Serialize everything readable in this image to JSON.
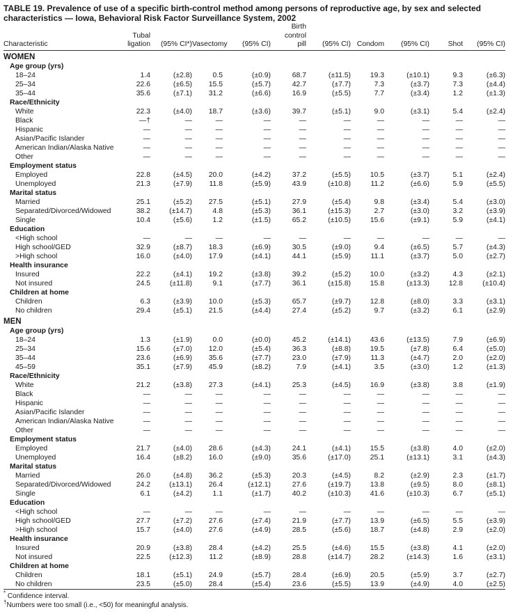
{
  "title": "TABLE 19. Prevalence of use of a specific birth-control method among persons of reproductive age, by sex and selected characteristics — Iowa, Behavioral Risk Factor Surveillance System, 2002",
  "columns": [
    [
      "Characteristic"
    ],
    [
      "Tubal",
      "ligation"
    ],
    [
      "(95% CI*)"
    ],
    [
      "Vasectomy"
    ],
    [
      "(95% CI)"
    ],
    [
      "Birth",
      "control",
      "pill"
    ],
    [
      "(95% CI)"
    ],
    [
      "Condom"
    ],
    [
      "(95% CI)"
    ],
    [
      "Shot"
    ],
    [
      "(95% CI)"
    ]
  ],
  "sections": [
    {
      "name": "WOMEN",
      "groups": [
        {
          "name": "Age group (yrs)",
          "rows": [
            [
              "18–24",
              "1.4",
              "(±2.8)",
              "0.5",
              "(±0.9)",
              "68.7",
              "(±11.5)",
              "19.3",
              "(±10.1)",
              "9.3",
              "(±6.3)"
            ],
            [
              "25–34",
              "22.6",
              "(±6.5)",
              "15.5",
              "(±5.7)",
              "42.7",
              "(±7.7)",
              "7.3",
              "(±3.7)",
              "7.3",
              "(±4.4)"
            ],
            [
              "35–44",
              "35.6",
              "(±7.1)",
              "31.2",
              "(±6.6)",
              "16.9",
              "(±5.5)",
              "7.7",
              "(±3.4)",
              "1.2",
              "(±1.3)"
            ]
          ]
        },
        {
          "name": "Race/Ethnicity",
          "rows": [
            [
              "White",
              "22.3",
              "(±4.0)",
              "18.7",
              "(±3.6)",
              "39.7",
              "(±5.1)",
              "9.0",
              "(±3.1)",
              "5.4",
              "(±2.4)"
            ],
            [
              "Black",
              "—†",
              "—",
              "—",
              "—",
              "—",
              "—",
              "—",
              "—",
              "—",
              "—"
            ],
            [
              "Hispanic",
              "—",
              "—",
              "—",
              "—",
              "—",
              "—",
              "—",
              "—",
              "—",
              "—"
            ],
            [
              "Asian/Pacific Islander",
              "—",
              "—",
              "—",
              "—",
              "—",
              "—",
              "—",
              "—",
              "—",
              "—"
            ],
            [
              "American Indian/Alaska Native",
              "—",
              "—",
              "—",
              "—",
              "—",
              "—",
              "—",
              "—",
              "—",
              "—"
            ],
            [
              "Other",
              "—",
              "—",
              "—",
              "—",
              "—",
              "—",
              "—",
              "—",
              "—",
              "—"
            ]
          ]
        },
        {
          "name": "Employment status",
          "rows": [
            [
              "Employed",
              "22.8",
              "(±4.5)",
              "20.0",
              "(±4.2)",
              "37.2",
              "(±5.5)",
              "10.5",
              "(±3.7)",
              "5.1",
              "(±2.4)"
            ],
            [
              "Unemployed",
              "21.3",
              "(±7.9)",
              "11.8",
              "(±5.9)",
              "43.9",
              "(±10.8)",
              "11.2",
              "(±6.6)",
              "5.9",
              "(±5.5)"
            ]
          ]
        },
        {
          "name": "Marital status",
          "rows": [
            [
              "Married",
              "25.1",
              "(±5.2)",
              "27.5",
              "(±5.1)",
              "27.9",
              "(±5.4)",
              "9.8",
              "(±3.4)",
              "5.4",
              "(±3.0)"
            ],
            [
              "Separated/Divorced/Widowed",
              "38.2",
              "(±14.7)",
              "4.8",
              "(±5.3)",
              "36.1",
              "(±15.3)",
              "2.7",
              "(±3.0)",
              "3.2",
              "(±3.9)"
            ],
            [
              "Single",
              "10.4",
              "(±5.6)",
              "1.2",
              "(±1.5)",
              "65.2",
              "(±10.5)",
              "15.6",
              "(±9.1)",
              "5.9",
              "(±4.1)"
            ]
          ]
        },
        {
          "name": "Education",
          "rows": [
            [
              "<High school",
              "—",
              "—",
              "—",
              "—",
              "—",
              "—",
              "—",
              "—",
              "—",
              "—"
            ],
            [
              "High school/GED",
              "32.9",
              "(±8.7)",
              "18.3",
              "(±6.9)",
              "30.5",
              "(±9.0)",
              "9.4",
              "(±6.5)",
              "5.7",
              "(±4.3)"
            ],
            [
              ">High school",
              "16.0",
              "(±4.0)",
              "17.9",
              "(±4.1)",
              "44.1",
              "(±5.9)",
              "11.1",
              "(±3.7)",
              "5.0",
              "(±2.7)"
            ]
          ]
        },
        {
          "name": "Health insurance",
          "rows": [
            [
              "Insured",
              "22.2",
              "(±4.1)",
              "19.2",
              "(±3.8)",
              "39.2",
              "(±5.2)",
              "10.0",
              "(±3.2)",
              "4.3",
              "(±2.1)"
            ],
            [
              "Not insured",
              "24.5",
              "(±11.8)",
              "9.1",
              "(±7.7)",
              "36.1",
              "(±15.8)",
              "15.8",
              "(±13.3)",
              "12.8",
              "(±10.4)"
            ]
          ]
        },
        {
          "name": "Children at home",
          "rows": [
            [
              "Children",
              "6.3",
              "(±3.9)",
              "10.0",
              "(±5.3)",
              "65.7",
              "(±9.7)",
              "12.8",
              "(±8.0)",
              "3.3",
              "(±3.1)"
            ],
            [
              "No children",
              "29.4",
              "(±5.1)",
              "21.5",
              "(±4.4)",
              "27.4",
              "(±5.2)",
              "9.7",
              "(±3.2)",
              "6.1",
              "(±2.9)"
            ]
          ]
        }
      ]
    },
    {
      "name": "MEN",
      "groups": [
        {
          "name": "Age group (yrs)",
          "rows": [
            [
              "18–24",
              "1.3",
              "(±1.9)",
              "0.0",
              "(±0.0)",
              "45.2",
              "(±14.1)",
              "43.6",
              "(±13.5)",
              "7.9",
              "(±6.9)"
            ],
            [
              "25–34",
              "15.6",
              "(±7.0)",
              "12.0",
              "(±5.4)",
              "36.3",
              "(±8.8)",
              "19.5",
              "(±7.8)",
              "6.4",
              "(±5.0)"
            ],
            [
              "35–44",
              "23.6",
              "(±6.9)",
              "35.6",
              "(±7.7)",
              "23.0",
              "(±7.9)",
              "11.3",
              "(±4.7)",
              "2.0",
              "(±2.0)"
            ],
            [
              "45–59",
              "35.1",
              "(±7.9)",
              "45.9",
              "(±8.2)",
              "7.9",
              "(±4.1)",
              "3.5",
              "(±3.0)",
              "1.2",
              "(±1.3)"
            ]
          ]
        },
        {
          "name": "Race/Ethnicity",
          "rows": [
            [
              "White",
              "21.2",
              "(±3.8)",
              "27.3",
              "(±4.1)",
              "25.3",
              "(±4.5)",
              "16.9",
              "(±3.8)",
              "3.8",
              "(±1.9)"
            ],
            [
              "Black",
              "—",
              "—",
              "—",
              "—",
              "—",
              "—",
              "—",
              "—",
              "—",
              "—"
            ],
            [
              "Hispanic",
              "—",
              "—",
              "—",
              "—",
              "—",
              "—",
              "—",
              "—",
              "—",
              "—"
            ],
            [
              "Asian/Pacific Islander",
              "—",
              "—",
              "—",
              "—",
              "—",
              "—",
              "—",
              "—",
              "—",
              "—"
            ],
            [
              "American Indian/Alaska Native",
              "—",
              "—",
              "—",
              "—",
              "—",
              "—",
              "—",
              "—",
              "—",
              "—"
            ],
            [
              "Other",
              "—",
              "—",
              "—",
              "—",
              "—",
              "—",
              "—",
              "—",
              "—",
              "—"
            ]
          ]
        },
        {
          "name": "Employment status",
          "rows": [
            [
              "Employed",
              "21.7",
              "(±4.0)",
              "28.6",
              "(±4.3)",
              "24.1",
              "(±4.1)",
              "15.5",
              "(±3.8)",
              "4.0",
              "(±2.0)"
            ],
            [
              "Unemployed",
              "16.4",
              "(±8.2)",
              "16.0",
              "(±9.0)",
              "35.6",
              "(±17.0)",
              "25.1",
              "(±13.1)",
              "3.1",
              "(±4.3)"
            ]
          ]
        },
        {
          "name": "Marital status",
          "rows": [
            [
              "Married",
              "26.0",
              "(±4.8)",
              "36.2",
              "(±5.3)",
              "20.3",
              "(±4.5)",
              "8.2",
              "(±2.9)",
              "2.3",
              "(±1.7)"
            ],
            [
              "Separated/Divorced/Widowed",
              "24.2",
              "(±13.1)",
              "26.4",
              "(±12.1)",
              "27.6",
              "(±19.7)",
              "13.8",
              "(±9.5)",
              "8.0",
              "(±8.1)"
            ],
            [
              "Single",
              "6.1",
              "(±4.2)",
              "1.1",
              "(±1.7)",
              "40.2",
              "(±10.3)",
              "41.6",
              "(±10.3)",
              "6.7",
              "(±5.1)"
            ]
          ]
        },
        {
          "name": "Education",
          "rows": [
            [
              "<High school",
              "—",
              "—",
              "—",
              "—",
              "—",
              "—",
              "—",
              "—",
              "—",
              "—"
            ],
            [
              "High school/GED",
              "27.7",
              "(±7.2)",
              "27.6",
              "(±7.4)",
              "21.9",
              "(±7.7)",
              "13.9",
              "(±6.5)",
              "5.5",
              "(±3.9)"
            ],
            [
              ">High school",
              "15.7",
              "(±4.0)",
              "27.6",
              "(±4.9)",
              "28.5",
              "(±5.6)",
              "18.7",
              "(±4.8)",
              "2.9",
              "(±2.0)"
            ]
          ]
        },
        {
          "name": "Health insurance",
          "rows": [
            [
              "Insured",
              "20.9",
              "(±3.8)",
              "28.4",
              "(±4.2)",
              "25.5",
              "(±4.6)",
              "15.5",
              "(±3.8)",
              "4.1",
              "(±2.0)"
            ],
            [
              "Not insured",
              "22.5",
              "(±12.3)",
              "11.2",
              "(±8.9)",
              "28.8",
              "(±14.7)",
              "28.2",
              "(±14.3)",
              "1.6",
              "(±3.1)"
            ]
          ]
        },
        {
          "name": "Children at home",
          "rows": [
            [
              "Children",
              "18.1",
              "(±5.1)",
              "24.9",
              "(±5.7)",
              "28.4",
              "(±6.9)",
              "20.5",
              "(±5.9)",
              "3.7",
              "(±2.7)"
            ],
            [
              "No children",
              "23.5",
              "(±5.0)",
              "28.4",
              "(±5.4)",
              "23.6",
              "(±5.5)",
              "13.9",
              "(±4.9)",
              "4.0",
              "(±2.5)"
            ]
          ]
        }
      ]
    }
  ],
  "footnotes": {
    "star_mark": "*",
    "star": "Confidence interval.",
    "dagger_mark": "†",
    "dagger": "Numbers were too small (i.e., <50) for meaningful analysis."
  }
}
